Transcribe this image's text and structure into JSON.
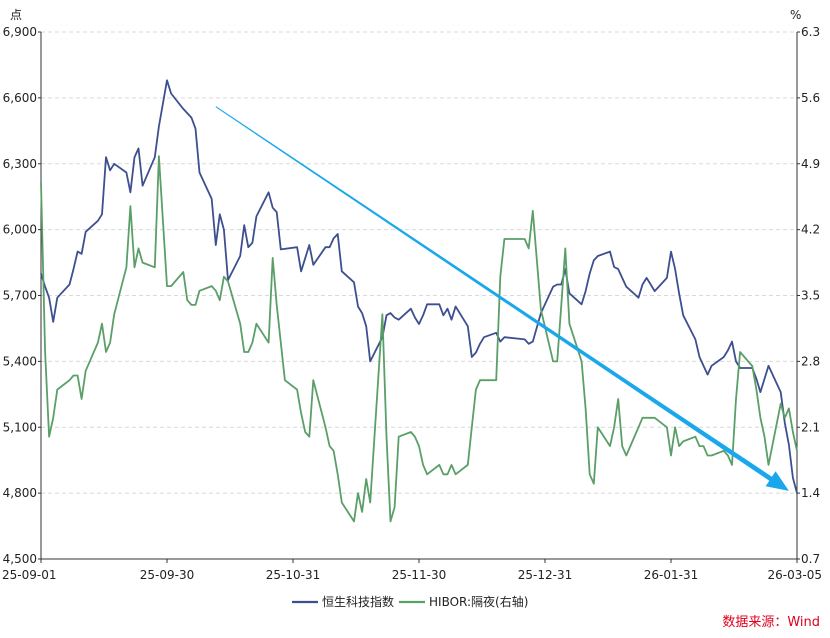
{
  "chart_data": {
    "type": "line",
    "title": "",
    "left_unit": "点",
    "right_unit": "%",
    "x_tick_labels": [
      "25-09-01",
      "25-09-30",
      "25-10-31",
      "25-11-30",
      "25-12-31",
      "26-01-31",
      "26-03-05"
    ],
    "y_left": {
      "lim": [
        4500,
        6900
      ],
      "ticks": [
        4500,
        4800,
        5100,
        5400,
        5700,
        6000,
        6300,
        6600,
        6900
      ],
      "tick_labels": [
        "4,500",
        "4,800",
        "5,100",
        "5,400",
        "5,700",
        "6,000",
        "6,300",
        "6,600",
        "6,900"
      ]
    },
    "y_right": {
      "lim": [
        0.7,
        6.3
      ],
      "ticks": [
        0.7,
        1.4,
        2.1,
        2.8,
        3.5,
        4.2,
        4.9,
        5.6,
        6.3
      ],
      "tick_labels": [
        "0.7",
        "1.4",
        "2.1",
        "2.8",
        "3.5",
        "4.2",
        "4.9",
        "5.6",
        "6.3"
      ]
    },
    "grid": true,
    "legend_position": "bottom-center",
    "series": [
      {
        "name": "恒生科技指数",
        "axis": "left",
        "color": "#3d4f8f",
        "points": [
          [
            "2025-09-01",
            5800
          ],
          [
            "2025-09-02",
            5740
          ],
          [
            "2025-09-03",
            5690
          ],
          [
            "2025-09-04",
            5580
          ],
          [
            "2025-09-05",
            5690
          ],
          [
            "2025-09-08",
            5750
          ],
          [
            "2025-09-09",
            5820
          ],
          [
            "2025-09-10",
            5900
          ],
          [
            "2025-09-11",
            5890
          ],
          [
            "2025-09-12",
            5990
          ],
          [
            "2025-09-15",
            6040
          ],
          [
            "2025-09-16",
            6070
          ],
          [
            "2025-09-17",
            6330
          ],
          [
            "2025-09-18",
            6270
          ],
          [
            "2025-09-19",
            6300
          ],
          [
            "2025-09-22",
            6260
          ],
          [
            "2025-09-23",
            6170
          ],
          [
            "2025-09-24",
            6330
          ],
          [
            "2025-09-25",
            6370
          ],
          [
            "2025-09-26",
            6200
          ],
          [
            "2025-09-29",
            6330
          ],
          [
            "2025-09-30",
            6470
          ],
          [
            "2025-10-02",
            6680
          ],
          [
            "2025-10-03",
            6620
          ],
          [
            "2025-10-06",
            6550
          ],
          [
            "2025-10-08",
            6510
          ],
          [
            "2025-10-09",
            6460
          ],
          [
            "2025-10-10",
            6260
          ],
          [
            "2025-10-13",
            6140
          ],
          [
            "2025-10-14",
            5930
          ],
          [
            "2025-10-15",
            6070
          ],
          [
            "2025-10-16",
            6000
          ],
          [
            "2025-10-17",
            5770
          ],
          [
            "2025-10-20",
            5880
          ],
          [
            "2025-10-21",
            6020
          ],
          [
            "2025-10-22",
            5920
          ],
          [
            "2025-10-23",
            5940
          ],
          [
            "2025-10-24",
            6060
          ],
          [
            "2025-10-27",
            6170
          ],
          [
            "2025-10-28",
            6100
          ],
          [
            "2025-10-29",
            6080
          ],
          [
            "2025-10-30",
            5910
          ],
          [
            "2025-11-03",
            5920
          ],
          [
            "2025-11-04",
            5810
          ],
          [
            "2025-11-05",
            5870
          ],
          [
            "2025-11-06",
            5930
          ],
          [
            "2025-11-07",
            5840
          ],
          [
            "2025-11-10",
            5920
          ],
          [
            "2025-11-11",
            5920
          ],
          [
            "2025-11-12",
            5960
          ],
          [
            "2025-11-13",
            5980
          ],
          [
            "2025-11-14",
            5810
          ],
          [
            "2025-11-17",
            5760
          ],
          [
            "2025-11-18",
            5650
          ],
          [
            "2025-11-19",
            5620
          ],
          [
            "2025-11-20",
            5560
          ],
          [
            "2025-11-21",
            5400
          ],
          [
            "2025-11-24",
            5510
          ],
          [
            "2025-11-25",
            5610
          ],
          [
            "2025-11-26",
            5620
          ],
          [
            "2025-11-27",
            5600
          ],
          [
            "2025-11-28",
            5590
          ],
          [
            "2025-12-01",
            5640
          ],
          [
            "2025-12-02",
            5600
          ],
          [
            "2025-12-03",
            5570
          ],
          [
            "2025-12-04",
            5610
          ],
          [
            "2025-12-05",
            5660
          ],
          [
            "2025-12-08",
            5660
          ],
          [
            "2025-12-09",
            5610
          ],
          [
            "2025-12-10",
            5640
          ],
          [
            "2025-12-11",
            5590
          ],
          [
            "2025-12-12",
            5650
          ],
          [
            "2025-12-15",
            5560
          ],
          [
            "2025-12-16",
            5420
          ],
          [
            "2025-12-17",
            5440
          ],
          [
            "2025-12-18",
            5480
          ],
          [
            "2025-12-19",
            5510
          ],
          [
            "2025-12-22",
            5530
          ],
          [
            "2025-12-23",
            5490
          ],
          [
            "2025-12-24",
            5510
          ],
          [
            "2025-12-29",
            5500
          ],
          [
            "2025-12-30",
            5480
          ],
          [
            "2025-12-31",
            5490
          ],
          [
            "2026-01-02",
            5620
          ],
          [
            "2026-01-05",
            5740
          ],
          [
            "2026-01-06",
            5750
          ],
          [
            "2026-01-07",
            5750
          ],
          [
            "2026-01-08",
            5820
          ],
          [
            "2026-01-09",
            5710
          ],
          [
            "2026-01-12",
            5660
          ],
          [
            "2026-01-13",
            5720
          ],
          [
            "2026-01-14",
            5800
          ],
          [
            "2026-01-15",
            5860
          ],
          [
            "2026-01-16",
            5880
          ],
          [
            "2026-01-19",
            5900
          ],
          [
            "2026-01-20",
            5830
          ],
          [
            "2026-01-21",
            5820
          ],
          [
            "2026-01-22",
            5780
          ],
          [
            "2026-01-23",
            5740
          ],
          [
            "2026-01-26",
            5690
          ],
          [
            "2026-01-27",
            5750
          ],
          [
            "2026-01-28",
            5780
          ],
          [
            "2026-01-29",
            5750
          ],
          [
            "2026-01-30",
            5720
          ],
          [
            "2026-02-02",
            5780
          ],
          [
            "2026-02-03",
            5900
          ],
          [
            "2026-02-04",
            5820
          ],
          [
            "2026-02-05",
            5710
          ],
          [
            "2026-02-06",
            5610
          ],
          [
            "2026-02-09",
            5500
          ],
          [
            "2026-02-10",
            5420
          ],
          [
            "2026-02-11",
            5380
          ],
          [
            "2026-02-12",
            5340
          ],
          [
            "2026-02-13",
            5380
          ],
          [
            "2026-02-16",
            5420
          ],
          [
            "2026-02-17",
            5450
          ],
          [
            "2026-02-18",
            5490
          ],
          [
            "2026-02-19",
            5400
          ],
          [
            "2026-02-20",
            5370
          ],
          [
            "2026-02-23",
            5370
          ],
          [
            "2026-02-24",
            5320
          ],
          [
            "2026-02-25",
            5260
          ],
          [
            "2026-02-26",
            5320
          ],
          [
            "2026-02-27",
            5380
          ],
          [
            "2026-03-02",
            5260
          ],
          [
            "2026-03-03",
            5120
          ],
          [
            "2026-03-04",
            5020
          ],
          [
            "2026-03-05",
            4870
          ],
          [
            "2026-03-06",
            4800
          ]
        ]
      },
      {
        "name": "HIBOR:隔夜(右轴)",
        "axis": "right",
        "color": "#5a9f68",
        "points": [
          [
            "2025-09-01",
            4.7
          ],
          [
            "2025-09-02",
            2.9
          ],
          [
            "2025-09-03",
            2.0
          ],
          [
            "2025-09-04",
            2.2
          ],
          [
            "2025-09-05",
            2.5
          ],
          [
            "2025-09-08",
            2.6
          ],
          [
            "2025-09-09",
            2.65
          ],
          [
            "2025-09-10",
            2.65
          ],
          [
            "2025-09-11",
            2.4
          ],
          [
            "2025-09-12",
            2.7
          ],
          [
            "2025-09-15",
            3.0
          ],
          [
            "2025-09-16",
            3.2
          ],
          [
            "2025-09-17",
            2.9
          ],
          [
            "2025-09-18",
            3.0
          ],
          [
            "2025-09-19",
            3.3
          ],
          [
            "2025-09-22",
            3.8
          ],
          [
            "2025-09-23",
            4.45
          ],
          [
            "2025-09-24",
            3.8
          ],
          [
            "2025-09-25",
            4.0
          ],
          [
            "2025-09-26",
            3.85
          ],
          [
            "2025-09-29",
            3.8
          ],
          [
            "2025-09-30",
            4.98
          ],
          [
            "2025-10-02",
            3.6
          ],
          [
            "2025-10-03",
            3.6
          ],
          [
            "2025-10-06",
            3.75
          ],
          [
            "2025-10-07",
            3.45
          ],
          [
            "2025-10-08",
            3.4
          ],
          [
            "2025-10-09",
            3.4
          ],
          [
            "2025-10-10",
            3.55
          ],
          [
            "2025-10-13",
            3.6
          ],
          [
            "2025-10-14",
            3.55
          ],
          [
            "2025-10-15",
            3.45
          ],
          [
            "2025-10-16",
            3.7
          ],
          [
            "2025-10-17",
            3.65
          ],
          [
            "2025-10-20",
            3.2
          ],
          [
            "2025-10-21",
            2.9
          ],
          [
            "2025-10-22",
            2.9
          ],
          [
            "2025-10-23",
            3.0
          ],
          [
            "2025-10-24",
            3.2
          ],
          [
            "2025-10-27",
            3.0
          ],
          [
            "2025-10-28",
            3.9
          ],
          [
            "2025-10-29",
            3.4
          ],
          [
            "2025-10-30",
            3.0
          ],
          [
            "2025-10-31",
            2.6
          ],
          [
            "2025-11-03",
            2.5
          ],
          [
            "2025-11-04",
            2.25
          ],
          [
            "2025-11-05",
            2.05
          ],
          [
            "2025-11-06",
            2.0
          ],
          [
            "2025-11-07",
            2.6
          ],
          [
            "2025-11-10",
            2.1
          ],
          [
            "2025-11-11",
            1.9
          ],
          [
            "2025-11-12",
            1.85
          ],
          [
            "2025-11-13",
            1.6
          ],
          [
            "2025-11-14",
            1.3
          ],
          [
            "2025-11-17",
            1.1
          ],
          [
            "2025-11-18",
            1.4
          ],
          [
            "2025-11-19",
            1.2
          ],
          [
            "2025-11-20",
            1.55
          ],
          [
            "2025-11-21",
            1.3
          ],
          [
            "2025-11-24",
            3.3
          ],
          [
            "2025-11-25",
            2.0
          ],
          [
            "2025-11-26",
            1.1
          ],
          [
            "2025-11-27",
            1.25
          ],
          [
            "2025-11-28",
            2.0
          ],
          [
            "2025-12-01",
            2.05
          ],
          [
            "2025-12-02",
            2.0
          ],
          [
            "2025-12-03",
            1.9
          ],
          [
            "2025-12-04",
            1.7
          ],
          [
            "2025-12-05",
            1.6
          ],
          [
            "2025-12-08",
            1.7
          ],
          [
            "2025-12-09",
            1.6
          ],
          [
            "2025-12-10",
            1.6
          ],
          [
            "2025-12-11",
            1.7
          ],
          [
            "2025-12-12",
            1.6
          ],
          [
            "2025-12-15",
            1.7
          ],
          [
            "2025-12-16",
            2.1
          ],
          [
            "2025-12-17",
            2.5
          ],
          [
            "2025-12-18",
            2.6
          ],
          [
            "2025-12-19",
            2.6
          ],
          [
            "2025-12-22",
            2.6
          ],
          [
            "2025-12-23",
            3.7
          ],
          [
            "2025-12-24",
            4.1
          ],
          [
            "2025-12-29",
            4.1
          ],
          [
            "2025-12-30",
            4.0
          ],
          [
            "2025-12-31",
            4.4
          ],
          [
            "2026-01-02",
            3.35
          ],
          [
            "2026-01-05",
            2.8
          ],
          [
            "2026-01-06",
            2.8
          ],
          [
            "2026-01-07",
            3.4
          ],
          [
            "2026-01-08",
            4.0
          ],
          [
            "2026-01-09",
            3.2
          ],
          [
            "2026-01-12",
            2.8
          ],
          [
            "2026-01-13",
            2.3
          ],
          [
            "2026-01-14",
            1.6
          ],
          [
            "2026-01-15",
            1.5
          ],
          [
            "2026-01-16",
            2.1
          ],
          [
            "2026-01-19",
            1.9
          ],
          [
            "2026-01-20",
            2.1
          ],
          [
            "2026-01-21",
            2.4
          ],
          [
            "2026-01-22",
            1.9
          ],
          [
            "2026-01-23",
            1.8
          ],
          [
            "2026-01-26",
            2.1
          ],
          [
            "2026-01-27",
            2.2
          ],
          [
            "2026-01-28",
            2.2
          ],
          [
            "2026-01-29",
            2.2
          ],
          [
            "2026-01-30",
            2.2
          ],
          [
            "2026-02-02",
            2.1
          ],
          [
            "2026-02-03",
            1.8
          ],
          [
            "2026-02-04",
            2.1
          ],
          [
            "2026-02-05",
            1.9
          ],
          [
            "2026-02-06",
            1.95
          ],
          [
            "2026-02-09",
            2.0
          ],
          [
            "2026-02-10",
            1.9
          ],
          [
            "2026-02-11",
            1.9
          ],
          [
            "2026-02-12",
            1.8
          ],
          [
            "2026-02-13",
            1.8
          ],
          [
            "2026-02-16",
            1.85
          ],
          [
            "2026-02-17",
            1.8
          ],
          [
            "2026-02-18",
            1.7
          ],
          [
            "2026-02-19",
            2.4
          ],
          [
            "2026-02-20",
            2.9
          ],
          [
            "2026-02-23",
            2.75
          ],
          [
            "2026-02-24",
            2.5
          ],
          [
            "2026-02-25",
            2.2
          ],
          [
            "2026-02-26",
            2.0
          ],
          [
            "2026-02-27",
            1.7
          ],
          [
            "2026-03-02",
            2.35
          ],
          [
            "2026-03-03",
            2.2
          ],
          [
            "2026-03-04",
            2.3
          ],
          [
            "2026-03-05",
            2.05
          ],
          [
            "2026-03-06",
            1.85
          ]
        ]
      }
    ],
    "annotations": [
      {
        "type": "arrow",
        "color": "#1aa7ec",
        "from": [
          "2025-10-14",
          6560
        ],
        "to": [
          "2026-03-04",
          4810
        ],
        "direction": "downward trend"
      }
    ]
  },
  "legend": {
    "item1": "恒生科技指数",
    "item2": "HIBOR:隔夜(右轴)"
  },
  "source": {
    "text": "数据来源：Wind",
    "color": "#e0001b"
  }
}
